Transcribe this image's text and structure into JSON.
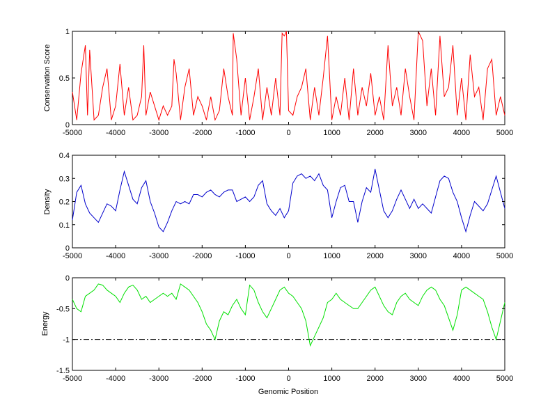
{
  "chart_data": [
    {
      "type": "line",
      "ylabel": "Conservation Score",
      "xlim": [
        -5000,
        5000
      ],
      "ylim": [
        0,
        1
      ],
      "xticks": [
        "-5000",
        "-4000",
        "-3000",
        "-2000",
        "-1000",
        "0",
        "1000",
        "2000",
        "3000",
        "4000",
        "5000"
      ],
      "yticks": [
        "0",
        "0.5",
        "1"
      ],
      "color": "#ff0000",
      "grid": false,
      "series": [
        {
          "x": [
            -5000,
            -4900,
            -4800,
            -4700,
            -4650,
            -4600,
            -4500,
            -4400,
            -4300,
            -4200,
            -4100,
            -4000,
            -3900,
            -3800,
            -3700,
            -3600,
            -3500,
            -3400,
            -3350,
            -3300,
            -3200,
            -3100,
            -3000,
            -2900,
            -2800,
            -2700,
            -2650,
            -2600,
            -2500,
            -2400,
            -2300,
            -2200,
            -2100,
            -2000,
            -1900,
            -1800,
            -1700,
            -1600,
            -1500,
            -1400,
            -1300,
            -1280,
            -1200,
            -1100,
            -1000,
            -900,
            -800,
            -700,
            -600,
            -500,
            -400,
            -300,
            -200,
            -150,
            -100,
            -50,
            0,
            100,
            200,
            300,
            400,
            500,
            600,
            700,
            800,
            900,
            1000,
            1100,
            1200,
            1300,
            1400,
            1500,
            1600,
            1700,
            1800,
            1900,
            2000,
            2100,
            2200,
            2300,
            2400,
            2500,
            2600,
            2700,
            2800,
            2900,
            3000,
            3100,
            3200,
            3300,
            3400,
            3500,
            3600,
            3700,
            3800,
            3900,
            4000,
            4100,
            4200,
            4300,
            4400,
            4500,
            4600,
            4700,
            4800,
            4900,
            5000
          ],
          "values": [
            0.35,
            0.05,
            0.55,
            0.85,
            0.1,
            0.8,
            0.05,
            0.1,
            0.4,
            0.6,
            0.05,
            0.2,
            0.65,
            0.1,
            0.4,
            0.05,
            0.1,
            0.3,
            0.85,
            0.1,
            0.35,
            0.2,
            0.05,
            0.2,
            0.1,
            0.2,
            0.7,
            0.55,
            0.05,
            0.4,
            0.6,
            0.1,
            0.3,
            0.2,
            0.05,
            0.3,
            0.05,
            0.15,
            0.6,
            0.3,
            0.1,
            0.98,
            0.7,
            0.1,
            0.5,
            0.05,
            0.3,
            0.6,
            0.05,
            0.4,
            0.1,
            0.5,
            0.1,
            0.98,
            0.95,
            1.0,
            0.15,
            0.1,
            0.3,
            0.4,
            0.6,
            0.05,
            0.4,
            0.1,
            0.5,
            0.95,
            0.05,
            0.3,
            0.1,
            0.5,
            0.05,
            0.6,
            0.1,
            0.4,
            0.2,
            0.55,
            0.1,
            0.3,
            0.05,
            0.85,
            0.2,
            0.4,
            0.1,
            0.6,
            0.3,
            0.05,
            1.0,
            0.9,
            0.2,
            0.6,
            0.1,
            0.95,
            0.3,
            0.4,
            0.85,
            0.1,
            0.5,
            0.05,
            0.75,
            0.3,
            0.4,
            0.05,
            0.6,
            0.7,
            0.1,
            0.3,
            0.1
          ]
        }
      ]
    },
    {
      "type": "line",
      "ylabel": "Density",
      "xlim": [
        -5000,
        5000
      ],
      "ylim": [
        0,
        0.4
      ],
      "xticks": [
        "-5000",
        "-4000",
        "-3000",
        "-2000",
        "-1000",
        "0",
        "1000",
        "2000",
        "3000",
        "4000",
        "5000"
      ],
      "yticks": [
        "0",
        "0.1",
        "0.2",
        "0.3",
        "0.4"
      ],
      "color": "#0000cc",
      "grid": false,
      "series": [
        {
          "x": [
            -5000,
            -4900,
            -4800,
            -4700,
            -4600,
            -4500,
            -4400,
            -4300,
            -4200,
            -4100,
            -4000,
            -3900,
            -3800,
            -3700,
            -3600,
            -3500,
            -3400,
            -3300,
            -3200,
            -3100,
            -3000,
            -2900,
            -2800,
            -2700,
            -2600,
            -2500,
            -2400,
            -2300,
            -2200,
            -2100,
            -2000,
            -1900,
            -1800,
            -1700,
            -1600,
            -1500,
            -1400,
            -1300,
            -1200,
            -1100,
            -1000,
            -900,
            -800,
            -700,
            -600,
            -500,
            -400,
            -300,
            -200,
            -100,
            0,
            100,
            200,
            300,
            400,
            500,
            600,
            700,
            800,
            900,
            1000,
            1100,
            1200,
            1300,
            1400,
            1500,
            1600,
            1700,
            1800,
            1900,
            2000,
            2100,
            2200,
            2300,
            2400,
            2500,
            2600,
            2700,
            2800,
            2900,
            3000,
            3100,
            3200,
            3300,
            3400,
            3500,
            3600,
            3700,
            3800,
            3900,
            4000,
            4100,
            4200,
            4300,
            4400,
            4500,
            4600,
            4700,
            4800,
            4900,
            5000
          ],
          "values": [
            0.12,
            0.24,
            0.27,
            0.19,
            0.15,
            0.13,
            0.11,
            0.15,
            0.19,
            0.18,
            0.16,
            0.25,
            0.33,
            0.27,
            0.21,
            0.19,
            0.26,
            0.29,
            0.2,
            0.15,
            0.09,
            0.07,
            0.11,
            0.16,
            0.2,
            0.19,
            0.2,
            0.19,
            0.23,
            0.23,
            0.22,
            0.24,
            0.25,
            0.23,
            0.22,
            0.24,
            0.25,
            0.25,
            0.2,
            0.21,
            0.22,
            0.2,
            0.22,
            0.27,
            0.29,
            0.19,
            0.16,
            0.14,
            0.17,
            0.13,
            0.16,
            0.28,
            0.31,
            0.32,
            0.3,
            0.31,
            0.29,
            0.32,
            0.27,
            0.25,
            0.13,
            0.2,
            0.26,
            0.27,
            0.2,
            0.2,
            0.11,
            0.2,
            0.26,
            0.24,
            0.34,
            0.25,
            0.16,
            0.13,
            0.16,
            0.21,
            0.25,
            0.21,
            0.17,
            0.21,
            0.17,
            0.19,
            0.17,
            0.15,
            0.22,
            0.29,
            0.31,
            0.3,
            0.24,
            0.2,
            0.13,
            0.07,
            0.14,
            0.2,
            0.18,
            0.16,
            0.19,
            0.25,
            0.31,
            0.24,
            0.17
          ]
        }
      ]
    },
    {
      "type": "line",
      "ylabel": "Energy",
      "xlabel": "Genomic Position",
      "xlim": [
        -5000,
        5000
      ],
      "ylim": [
        -1.5,
        0
      ],
      "xticks": [
        "-5000",
        "-4000",
        "-3000",
        "-2000",
        "-1000",
        "0",
        "1000",
        "2000",
        "3000",
        "4000",
        "5000"
      ],
      "yticks": [
        "-1.5",
        "-1",
        "-0.5",
        "0"
      ],
      "color": "#00e000",
      "reference_line": {
        "y": -1,
        "style": "dash-dot",
        "color": "#000000"
      },
      "grid": false,
      "series": [
        {
          "x": [
            -5000,
            -4900,
            -4800,
            -4700,
            -4600,
            -4500,
            -4400,
            -4300,
            -4200,
            -4100,
            -4000,
            -3900,
            -3800,
            -3700,
            -3600,
            -3500,
            -3400,
            -3300,
            -3200,
            -3100,
            -3000,
            -2900,
            -2800,
            -2700,
            -2600,
            -2500,
            -2400,
            -2300,
            -2200,
            -2100,
            -2000,
            -1900,
            -1800,
            -1700,
            -1600,
            -1500,
            -1400,
            -1300,
            -1200,
            -1100,
            -1000,
            -900,
            -800,
            -700,
            -600,
            -500,
            -400,
            -300,
            -200,
            -100,
            0,
            100,
            200,
            300,
            400,
            500,
            600,
            700,
            800,
            900,
            1000,
            1100,
            1200,
            1300,
            1400,
            1500,
            1600,
            1700,
            1800,
            1900,
            2000,
            2100,
            2200,
            2300,
            2400,
            2500,
            2600,
            2700,
            2800,
            2900,
            3000,
            3100,
            3200,
            3300,
            3400,
            3500,
            3600,
            3700,
            3800,
            3900,
            4000,
            4100,
            4200,
            4300,
            4400,
            4500,
            4600,
            4700,
            4800,
            4900,
            5000
          ],
          "values": [
            -0.35,
            -0.5,
            -0.55,
            -0.3,
            -0.25,
            -0.2,
            -0.1,
            -0.12,
            -0.2,
            -0.25,
            -0.3,
            -0.4,
            -0.25,
            -0.15,
            -0.12,
            -0.2,
            -0.35,
            -0.3,
            -0.4,
            -0.35,
            -0.3,
            -0.25,
            -0.3,
            -0.25,
            -0.35,
            -0.1,
            -0.15,
            -0.2,
            -0.3,
            -0.4,
            -0.55,
            -0.75,
            -0.85,
            -1.0,
            -0.7,
            -0.55,
            -0.6,
            -0.45,
            -0.35,
            -0.5,
            -0.6,
            -0.12,
            -0.2,
            -0.4,
            -0.55,
            -0.65,
            -0.5,
            -0.35,
            -0.2,
            -0.15,
            -0.25,
            -0.3,
            -0.4,
            -0.5,
            -0.7,
            -1.1,
            -0.95,
            -0.8,
            -0.65,
            -0.4,
            -0.35,
            -0.25,
            -0.35,
            -0.4,
            -0.45,
            -0.5,
            -0.5,
            -0.4,
            -0.3,
            -0.2,
            -0.15,
            -0.3,
            -0.45,
            -0.55,
            -0.6,
            -0.4,
            -0.3,
            -0.25,
            -0.35,
            -0.4,
            -0.45,
            -0.3,
            -0.2,
            -0.15,
            -0.2,
            -0.35,
            -0.45,
            -0.65,
            -0.85,
            -0.6,
            -0.2,
            -0.15,
            -0.2,
            -0.25,
            -0.3,
            -0.35,
            -0.55,
            -0.8,
            -1.0,
            -0.7,
            -0.4
          ]
        }
      ]
    }
  ]
}
